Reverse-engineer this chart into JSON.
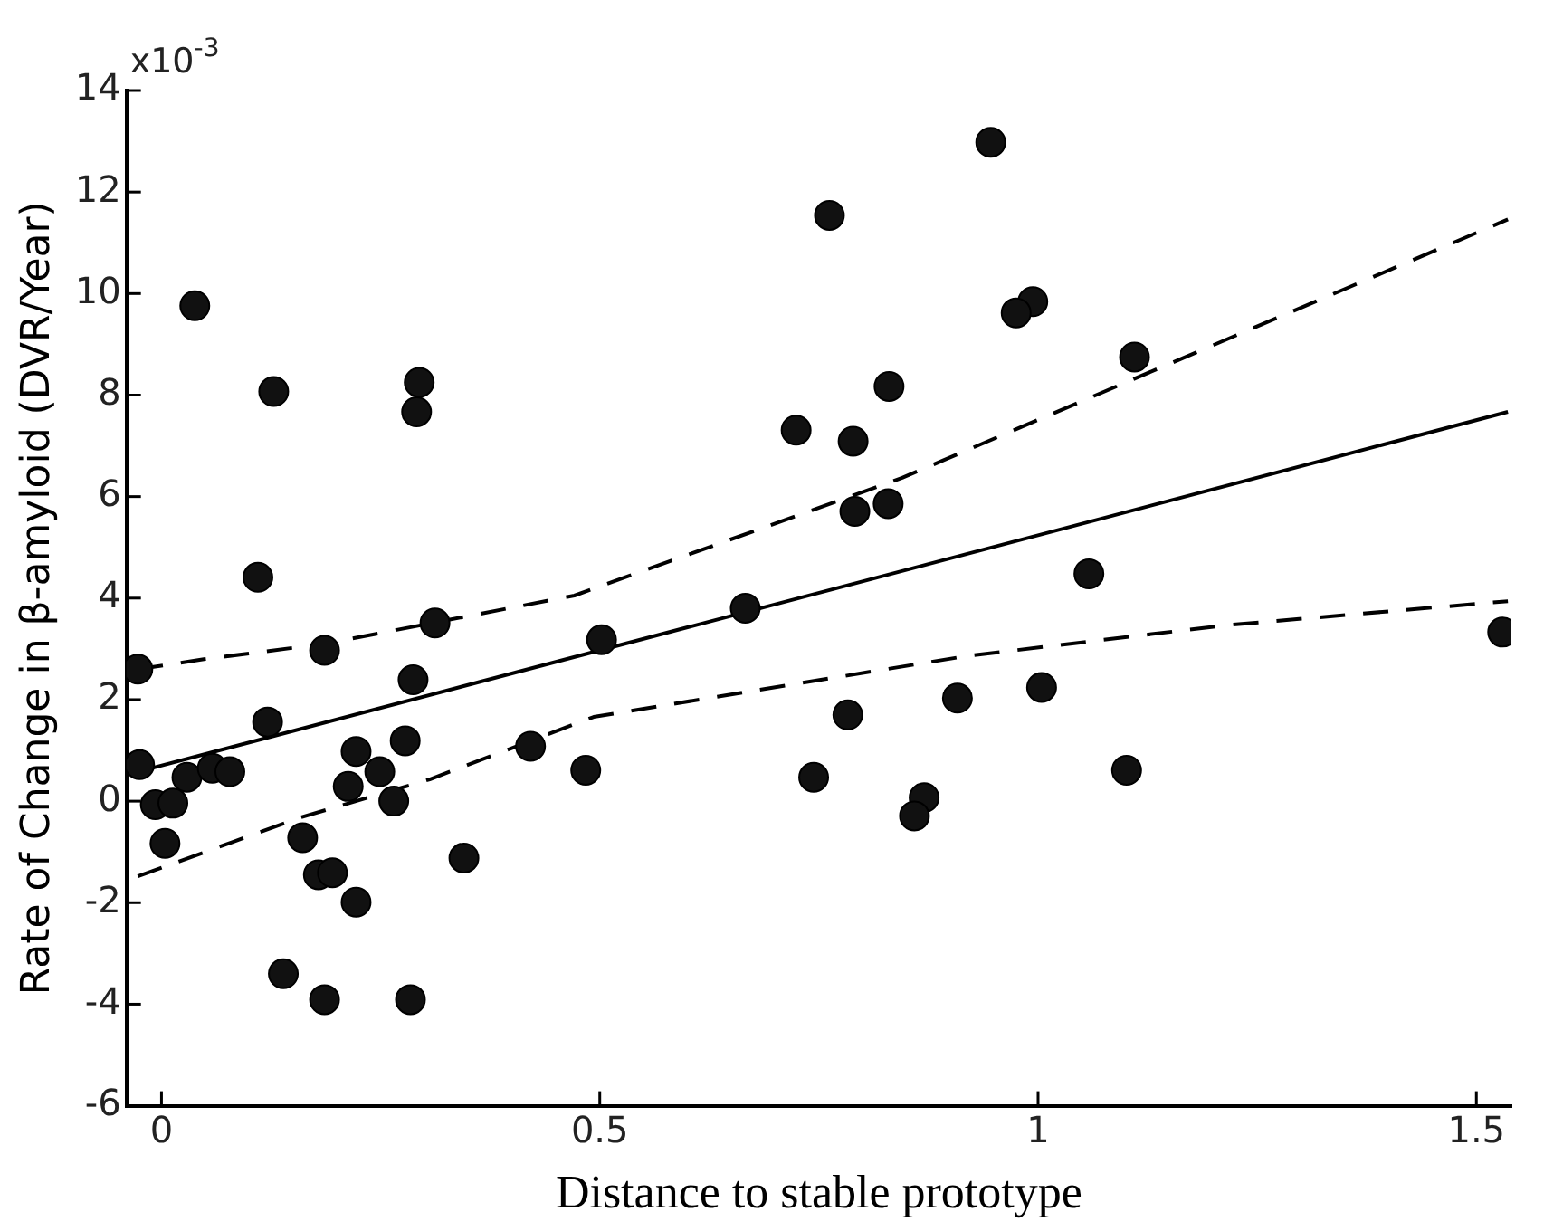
{
  "chart_data": {
    "type": "scatter",
    "xlabel": "Distance to stable prototype",
    "ylabel": "Rate of Change in β-amyloid (DVR/Year)",
    "annotations": [
      "x10$^{-3}$"
    ],
    "xlim": [
      -0.04,
      1.54
    ],
    "xticks": [
      0,
      0.5,
      1,
      1.5
    ],
    "ylim": [
      -6,
      14
    ],
    "yticks": [
      -6,
      -4,
      -2,
      0,
      2,
      4,
      6,
      8,
      10,
      12,
      14
    ],
    "grid": false,
    "legend": false,
    "marker": "circle",
    "series": [
      {
        "type": "scatter",
        "color": "#111111",
        "x": [
          0.038,
          0.128,
          0.294,
          0.291,
          0.11,
          -0.027,
          0.312,
          0.186,
          0.287,
          0.502,
          0.121,
          -0.025,
          0.029,
          0.058,
          0.078,
          -0.007,
          0.013,
          0.004,
          0.222,
          0.278,
          0.249,
          0.213,
          0.265,
          0.161,
          0.179,
          0.195,
          0.222,
          0.345,
          0.421,
          0.484,
          0.139,
          0.186,
          0.284,
          0.946,
          0.762,
          0.994,
          0.975,
          1.11,
          0.83,
          0.724,
          0.789,
          0.791,
          0.829,
          1.53,
          0.666,
          1.058,
          1.004,
          0.908,
          0.783,
          0.744,
          1.101,
          0.87,
          0.859
        ],
        "values": [
          9.76,
          8.07,
          8.25,
          7.67,
          4.41,
          2.6,
          3.51,
          2.97,
          2.39,
          3.18,
          1.56,
          0.72,
          0.47,
          0.65,
          0.58,
          -0.07,
          -0.04,
          -0.83,
          0.98,
          1.19,
          0.58,
          0.29,
          0.0,
          -0.72,
          -1.45,
          -1.41,
          -1.99,
          -1.12,
          1.08,
          0.61,
          -3.4,
          -3.91,
          -3.91,
          12.98,
          11.54,
          9.84,
          9.62,
          8.75,
          8.17,
          7.31,
          7.09,
          5.71,
          5.86,
          3.33,
          3.8,
          4.48,
          2.24,
          2.03,
          1.7,
          0.47,
          0.61,
          0.07,
          -0.29
        ]
      },
      {
        "type": "line",
        "color": "#000000",
        "line_style": "solid",
        "marker": "none",
        "x": [
          -0.027,
          1.536
        ],
        "values": [
          0.58,
          7.67
        ]
      },
      {
        "type": "line",
        "color": "#000000",
        "line_style": "dashed",
        "marker": "none",
        "x": [
          -0.027,
          0.05,
          0.186,
          0.471,
          0.845,
          1.536
        ],
        "values": [
          2.6,
          2.8,
          3.1,
          4.05,
          6.37,
          11.46
        ]
      },
      {
        "type": "line",
        "color": "#000000",
        "line_style": "dashed",
        "marker": "none",
        "x": [
          -0.027,
          0.157,
          0.306,
          0.493,
          0.919,
          1.217,
          1.536
        ],
        "values": [
          -1.48,
          -0.33,
          0.43,
          1.66,
          2.86,
          3.47,
          3.94
        ]
      }
    ]
  }
}
